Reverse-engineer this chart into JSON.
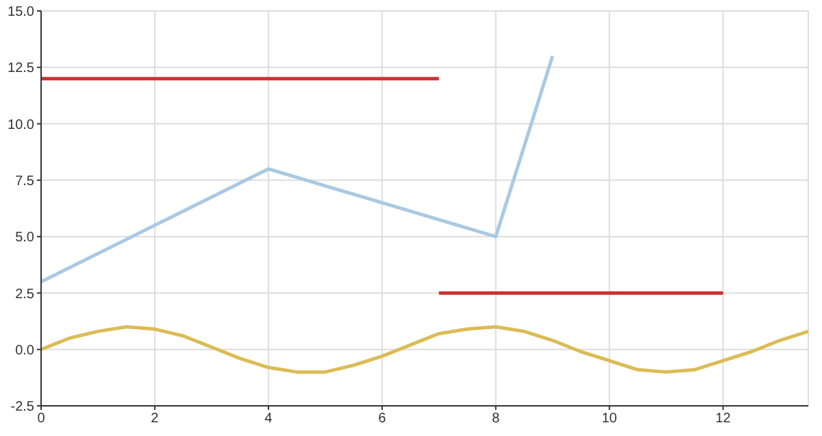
{
  "chart_data": {
    "type": "line",
    "xlim": [
      0,
      13.5
    ],
    "xticks": [
      0,
      2,
      4,
      6,
      8,
      10,
      12
    ],
    "ylim": [
      -2.5,
      15
    ],
    "yticks": [
      -2.5,
      {
        "value": 0,
        "label": "0.0"
      },
      2.5,
      {
        "value": 5,
        "label": "5.0"
      },
      7.5,
      {
        "value": 10,
        "label": "10.0"
      },
      12.5,
      {
        "value": 15,
        "label": "15.0"
      }
    ],
    "grid": true,
    "line_style": "solid",
    "series": [
      {
        "color": "#a9c9e2",
        "x": [
          0,
          4,
          8,
          9
        ],
        "values": [
          3,
          8,
          5,
          13
        ]
      },
      {
        "color": "#cc3333",
        "x": [
          0,
          7
        ],
        "values": [
          12,
          12
        ]
      },
      {
        "color": "#cc3333",
        "x": [
          7,
          12
        ],
        "values": [
          2.5,
          2.5
        ]
      },
      {
        "color": "#dbbc55",
        "x": [
          0,
          0.5,
          1,
          1.5,
          2,
          2.5,
          3,
          3.5,
          4,
          4.5,
          5,
          5.5,
          6,
          6.5,
          7,
          7.5,
          8,
          8.5,
          9,
          9.5,
          10,
          10.5,
          11,
          11.5,
          12,
          12.5,
          13,
          13.5
        ],
        "values": [
          0,
          0.5,
          0.8,
          1,
          0.9,
          0.6,
          0.1,
          -0.4,
          -0.8,
          -1,
          -1,
          -0.7,
          -0.3,
          0.2,
          0.7,
          0.9,
          1,
          0.8,
          0.4,
          -0.1,
          -0.5,
          -0.9,
          -1,
          -0.9,
          -0.5,
          -0.1,
          0.4,
          0.8
        ]
      }
    ]
  }
}
